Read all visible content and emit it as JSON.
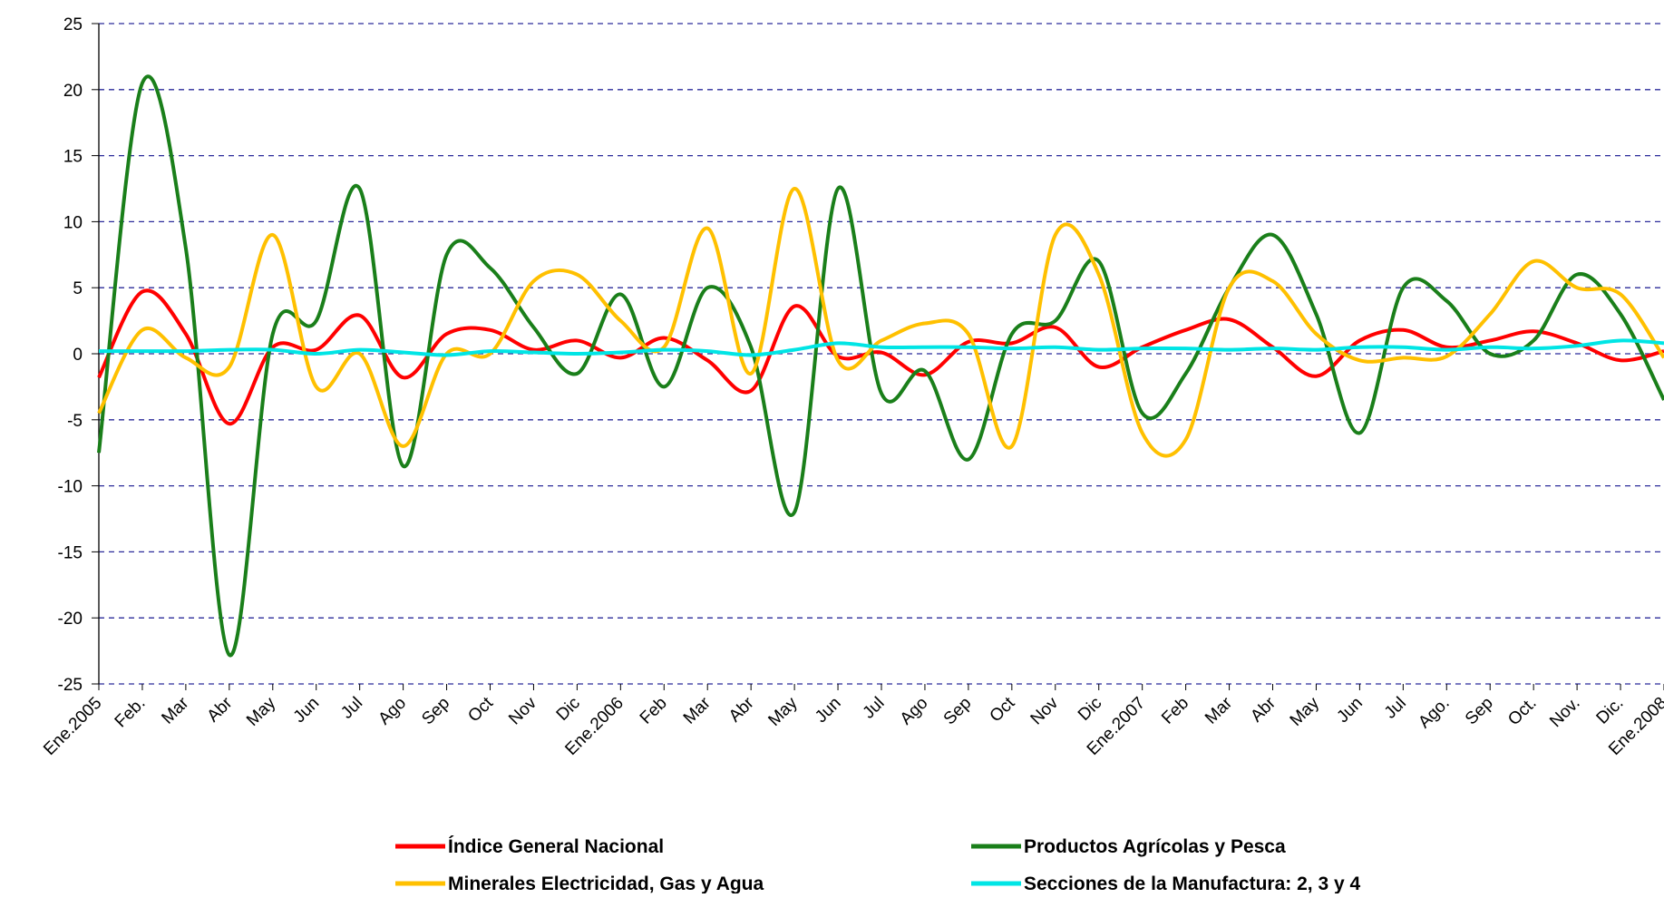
{
  "chart_data": {
    "type": "line",
    "categories": [
      "Ene.2005",
      "Feb.",
      "Mar",
      "Abr",
      "May",
      "Jun",
      "Jul",
      "Ago",
      "Sep",
      "Oct",
      "Nov",
      "Dic",
      "Ene.2006",
      "Feb",
      "Mar",
      "Abr",
      "May",
      "Jun",
      "Jul",
      "Ago",
      "Sep",
      "Oct",
      "Nov",
      "Dic",
      "Ene.2007",
      "Feb",
      "Mar",
      "Abr",
      "May",
      "Jun",
      "Jul",
      "Ago.",
      "Sep",
      "Oct.",
      "Nov.",
      "Dic.",
      "Ene.2008"
    ],
    "series": [
      {
        "name": "Índice General Nacional",
        "color": "#ff0000",
        "values": [
          -1.8,
          4.7,
          1.5,
          -5.3,
          0.5,
          0.3,
          2.9,
          -1.8,
          1.5,
          1.8,
          0.3,
          1.0,
          -0.3,
          1.2,
          -0.5,
          -2.8,
          3.6,
          -0.2,
          0.1,
          -1.6,
          0.9,
          0.8,
          2.0,
          -1.0,
          0.5,
          1.8,
          2.6,
          0.5,
          -1.7,
          1.0,
          1.8,
          0.5,
          1.0,
          1.7,
          0.8,
          -0.5,
          0.2
        ]
      },
      {
        "name": "Productos Agrícolas y Pesca",
        "color": "#1a7f1a",
        "values": [
          -7.5,
          20.5,
          8,
          -22.8,
          1.5,
          2.5,
          12.5,
          -8.5,
          7.5,
          6.5,
          2,
          -1.5,
          4.5,
          -2.5,
          5,
          0.5,
          -12,
          12.5,
          -3,
          -1.3,
          -8,
          1.5,
          2.5,
          7,
          -4.5,
          -1.5,
          5,
          9,
          3,
          -6,
          5,
          4,
          0,
          1,
          6,
          3,
          -3.5
        ]
      },
      {
        "name": "Minerales Electricidad, Gas y Agua",
        "color": "#ffc000",
        "values": [
          -4.5,
          1.8,
          -0.3,
          -1.0,
          9,
          -2.5,
          0,
          -7,
          0,
          0,
          5.5,
          6,
          2.5,
          0.5,
          9.5,
          -1.5,
          12.5,
          -0.5,
          1,
          2.3,
          1.5,
          -7,
          9,
          6,
          -6,
          -6.5,
          5,
          5.5,
          1.5,
          -0.5,
          -0.3,
          -0.2,
          3,
          7,
          5,
          4.5,
          -0.3
        ]
      },
      {
        "name": "Secciones de la Manufactura: 2, 3 y 4",
        "color": "#00e5e5",
        "values": [
          0.2,
          0.2,
          0.2,
          0.3,
          0.3,
          0,
          0.3,
          0.1,
          -0.1,
          0.2,
          0.1,
          0,
          0.1,
          0.3,
          0.2,
          -0.1,
          0.3,
          0.8,
          0.5,
          0.5,
          0.5,
          0.4,
          0.5,
          0.3,
          0.4,
          0.4,
          0.3,
          0.4,
          0.3,
          0.5,
          0.5,
          0.3,
          0.5,
          0.4,
          0.6,
          1.0,
          0.8
        ]
      }
    ],
    "ylim": [
      -25,
      25
    ],
    "yticks": [
      -25,
      -20,
      -15,
      -10,
      -5,
      0,
      5,
      10,
      15,
      20,
      25
    ],
    "grid": true
  }
}
